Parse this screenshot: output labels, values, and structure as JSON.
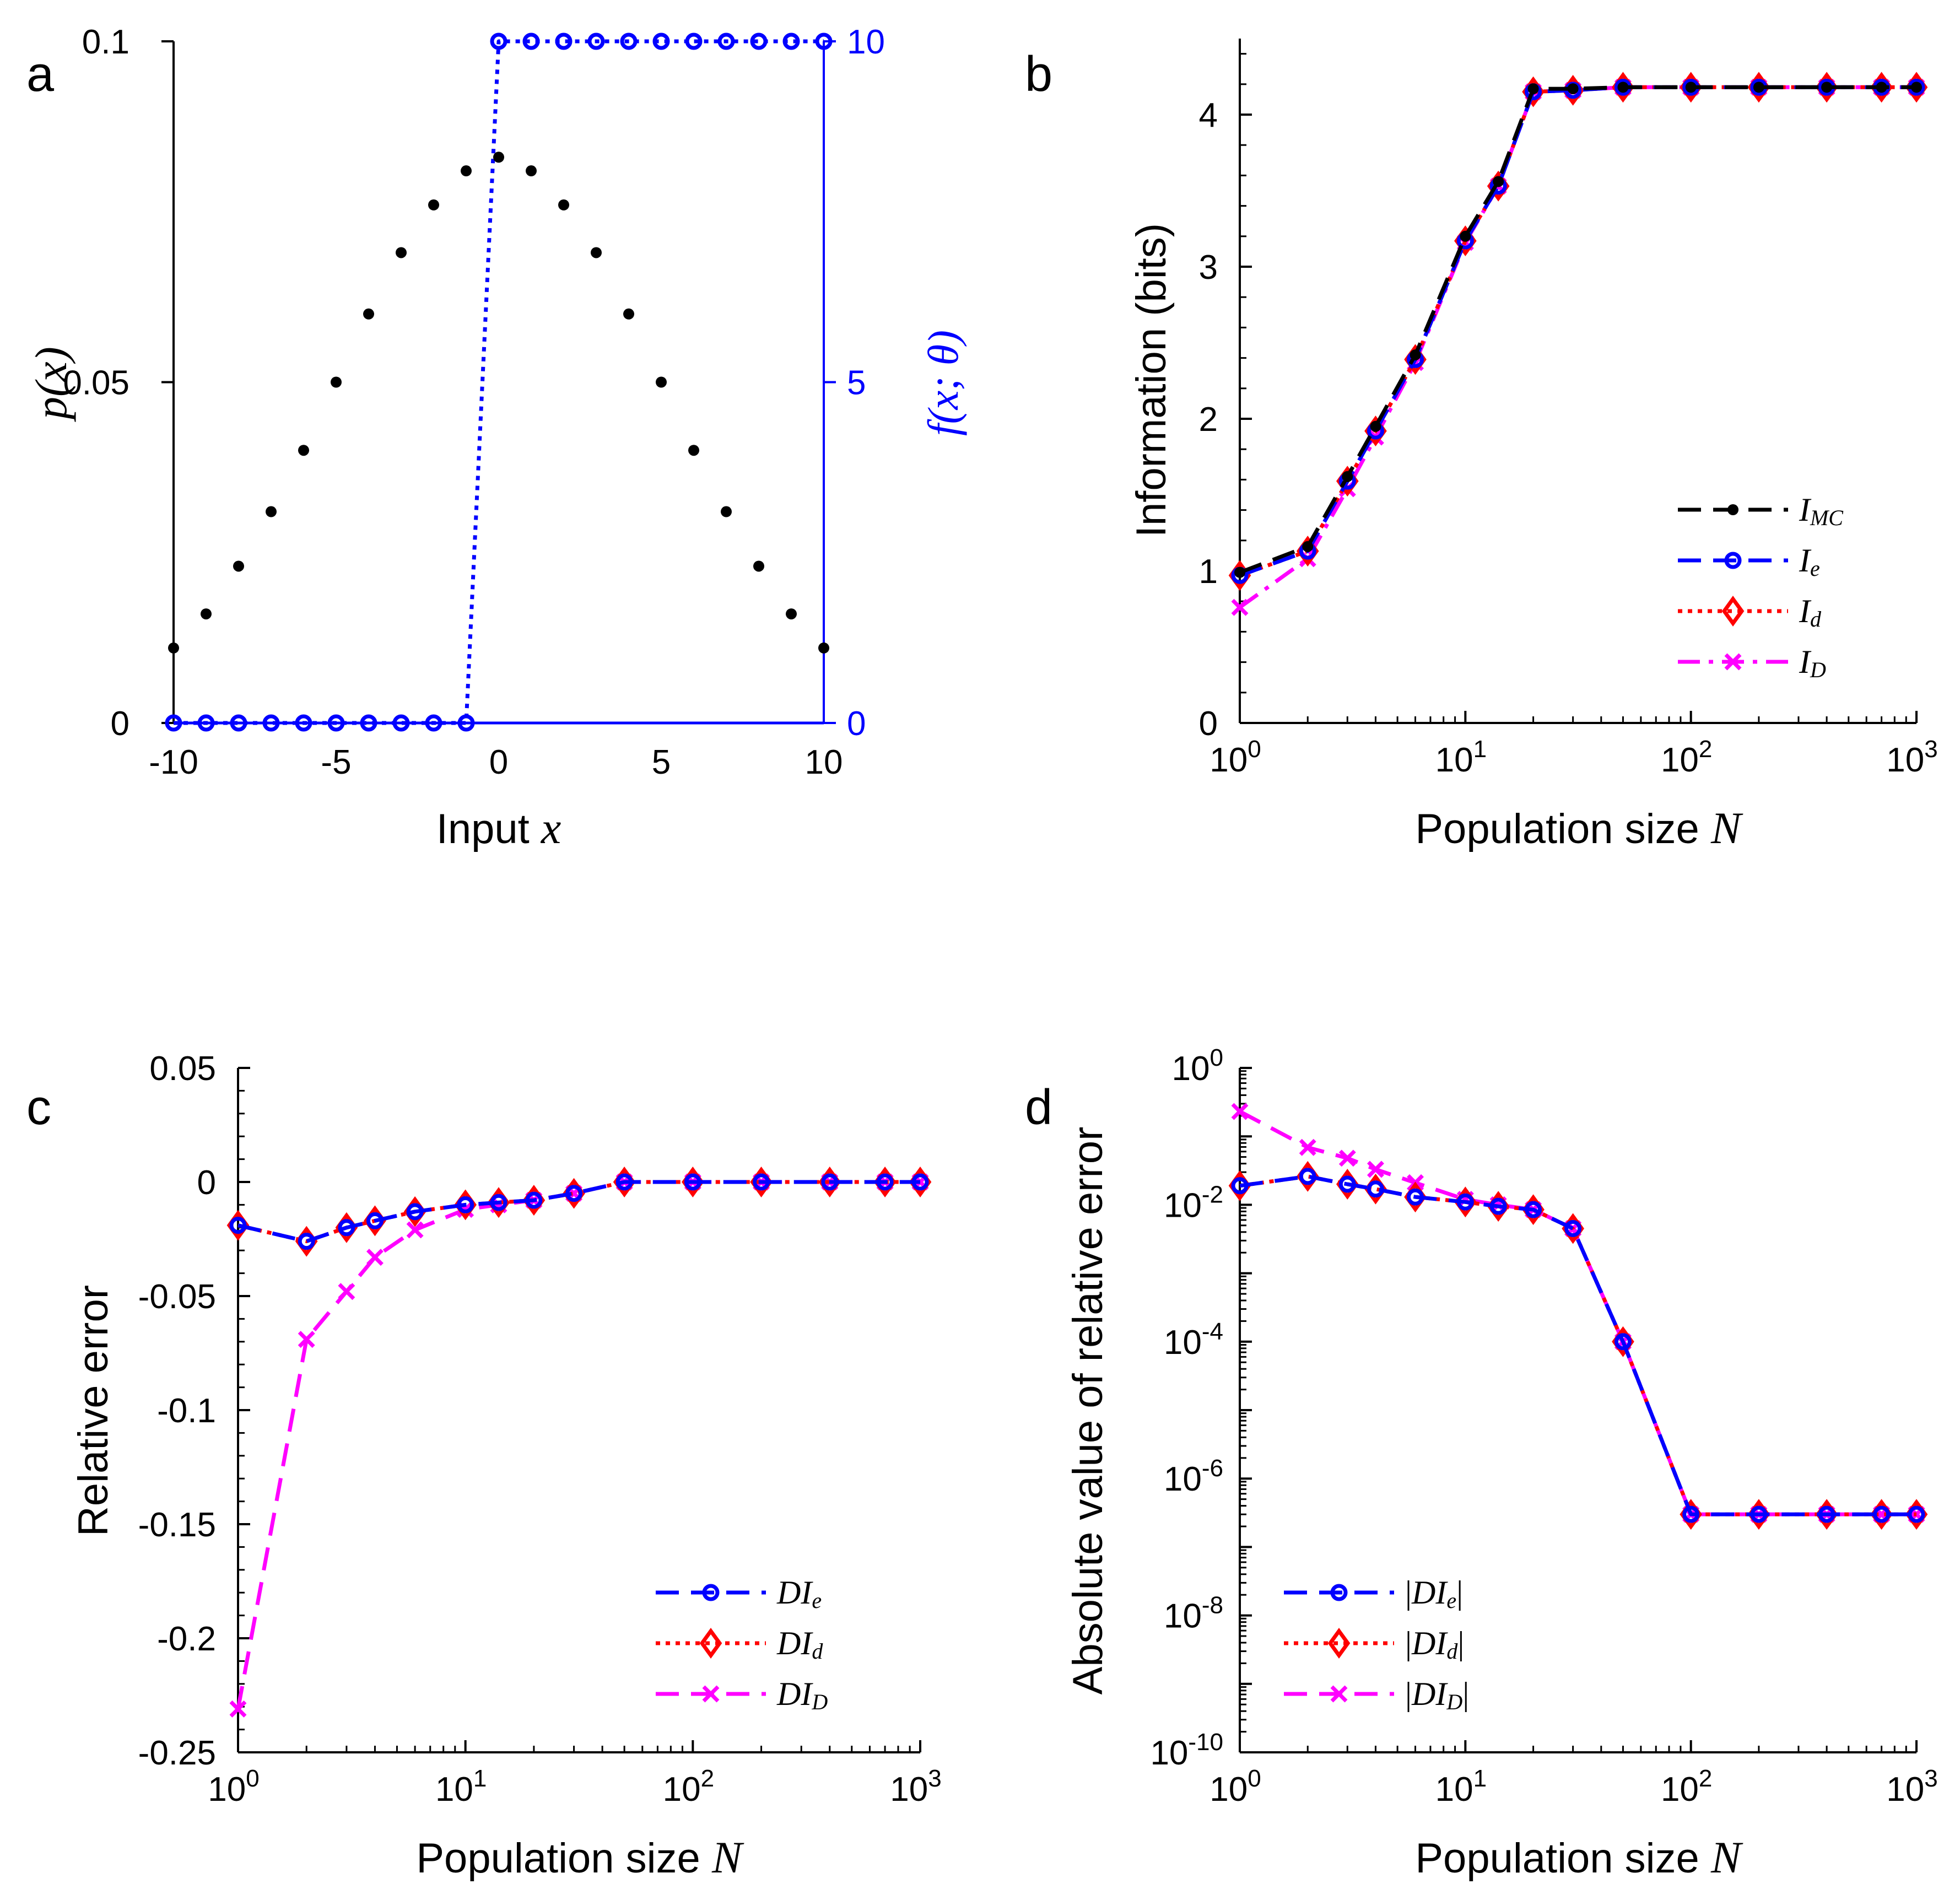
{
  "figure": {
    "panels": [
      "a",
      "b",
      "c",
      "d"
    ]
  },
  "chart_data": [
    {
      "panel": "a",
      "type": "scatter",
      "xlabel": "Input x",
      "xlabel_prefix": "Input",
      "xlabel_var": "x",
      "ylabel_left": "p(x)",
      "ylabel_right": "f(x; θ)",
      "xlim": [
        -10,
        10
      ],
      "ylim_left": [
        0,
        0.1
      ],
      "ylim_right": [
        0,
        10
      ],
      "xticks": [
        -10,
        -5,
        0,
        5,
        10
      ],
      "xtick_labels": [
        "-10",
        "-5",
        "0",
        "5",
        "10"
      ],
      "yticks_left": [
        0,
        0.05,
        0.1
      ],
      "ytick_labels_left": [
        "0",
        "0.05",
        "0.1"
      ],
      "yticks_right": [
        0,
        5,
        10
      ],
      "ytick_labels_right": [
        "0",
        "5",
        "10"
      ],
      "series": [
        {
          "name": "p(x)",
          "axis": "left",
          "color": "#000000",
          "marker": "dot",
          "x": [
            -10,
            -9,
            -8,
            -7,
            -6,
            -5,
            -4,
            -3,
            -2,
            -1,
            0,
            1,
            2,
            3,
            4,
            5,
            6,
            7,
            8,
            9,
            10
          ],
          "y": [
            0.011,
            0.016,
            0.023,
            0.031,
            0.04,
            0.05,
            0.06,
            0.069,
            0.076,
            0.081,
            0.083,
            0.081,
            0.076,
            0.069,
            0.06,
            0.05,
            0.04,
            0.031,
            0.023,
            0.016,
            0.011
          ]
        },
        {
          "name": "f(x; θ)",
          "axis": "right",
          "color": "#0000ff",
          "marker": "circle",
          "line": "dotted",
          "x": [
            -10,
            -9,
            -8,
            -7,
            -6,
            -5,
            -4,
            -3,
            -2,
            -1,
            0,
            1,
            2,
            3,
            4,
            5,
            6,
            7,
            8,
            9,
            10
          ],
          "y": [
            0,
            0,
            0,
            0,
            0,
            0,
            0,
            0,
            0,
            0,
            10,
            10,
            10,
            10,
            10,
            10,
            10,
            10,
            10,
            10,
            10
          ]
        }
      ]
    },
    {
      "panel": "b",
      "type": "line",
      "xscale": "log",
      "xlabel": "Population size N",
      "xlabel_prefix": "Population size",
      "xlabel_var": "N",
      "ylabel": "Information (bits)",
      "xlim": [
        1,
        1000
      ],
      "ylim": [
        0,
        4.5
      ],
      "yticks": [
        0,
        1,
        2,
        3,
        4
      ],
      "ytick_labels": [
        "0",
        "1",
        "2",
        "3",
        "4"
      ],
      "xtick_exponents": [
        "0",
        "1",
        "2",
        "3"
      ],
      "x": [
        1,
        2,
        3,
        4,
        6,
        10,
        14,
        20,
        30,
        50,
        100,
        200,
        400,
        700,
        1000
      ],
      "legend_position": "middle-right",
      "series": [
        {
          "name": "I_MC",
          "label_main": "I",
          "label_sub": "MC",
          "color": "#000000",
          "marker": "dot",
          "dash": "long-dash",
          "values": [
            0.99,
            1.16,
            1.62,
            1.95,
            2.42,
            3.2,
            3.56,
            4.17,
            4.17,
            4.18,
            4.18,
            4.18,
            4.18,
            4.18,
            4.18
          ]
        },
        {
          "name": "I_e",
          "label_main": "I",
          "label_sub": "e",
          "color": "#0000ff",
          "marker": "circle",
          "dash": "long-dash",
          "values": [
            0.97,
            1.13,
            1.59,
            1.92,
            2.39,
            3.17,
            3.53,
            4.15,
            4.16,
            4.18,
            4.18,
            4.18,
            4.18,
            4.18,
            4.18
          ]
        },
        {
          "name": "I_d",
          "label_main": "I",
          "label_sub": "d",
          "color": "#ff0000",
          "marker": "diamond",
          "dash": "dotted",
          "values": [
            0.97,
            1.13,
            1.59,
            1.92,
            2.39,
            3.17,
            3.53,
            4.15,
            4.16,
            4.18,
            4.18,
            4.18,
            4.18,
            4.18,
            4.18
          ]
        },
        {
          "name": "I_D",
          "label_main": "I",
          "label_sub": "D",
          "color": "#ff00ff",
          "marker": "cross",
          "dash": "dash-dot",
          "values": [
            0.76,
            1.08,
            1.54,
            1.88,
            2.37,
            3.16,
            3.53,
            4.15,
            4.16,
            4.18,
            4.18,
            4.18,
            4.18,
            4.18,
            4.18
          ]
        }
      ]
    },
    {
      "panel": "c",
      "type": "line",
      "xscale": "log",
      "xlabel": "Population size N",
      "xlabel_prefix": "Population size",
      "xlabel_var": "N",
      "ylabel": "Relative error",
      "xlim": [
        1,
        1000
      ],
      "ylim": [
        -0.25,
        0.05
      ],
      "yticks": [
        -0.25,
        -0.2,
        -0.15,
        -0.1,
        -0.05,
        0,
        0.05
      ],
      "ytick_labels": [
        "-0.25",
        "-0.2",
        "-0.15",
        "-0.1",
        "-0.05",
        "0",
        "0.05"
      ],
      "xtick_exponents": [
        "0",
        "1",
        "2",
        "3"
      ],
      "x": [
        1,
        2,
        3,
        4,
        6,
        10,
        14,
        20,
        30,
        50,
        100,
        200,
        400,
        700,
        1000
      ],
      "legend_position": "bottom-right",
      "series": [
        {
          "name": "DI_e",
          "label_main": "DI",
          "label_sub": "e",
          "color": "#0000ff",
          "marker": "circle",
          "dash": "long-dash",
          "values": [
            -0.019,
            -0.026,
            -0.02,
            -0.017,
            -0.013,
            -0.01,
            -0.009,
            -0.008,
            -0.005,
            0.0,
            0.0,
            0.0,
            0.0,
            0.0,
            0.0
          ]
        },
        {
          "name": "DI_d",
          "label_main": "DI",
          "label_sub": "d",
          "color": "#ff0000",
          "marker": "diamond",
          "dash": "dotted",
          "values": [
            -0.019,
            -0.026,
            -0.02,
            -0.017,
            -0.013,
            -0.01,
            -0.009,
            -0.008,
            -0.005,
            0.0,
            0.0,
            0.0,
            0.0,
            0.0,
            0.0
          ]
        },
        {
          "name": "DI_D",
          "label_main": "DI",
          "label_sub": "D",
          "color": "#ff00ff",
          "marker": "cross",
          "dash": "long-dash",
          "values": [
            -0.231,
            -0.069,
            -0.048,
            -0.033,
            -0.021,
            -0.012,
            -0.01,
            -0.008,
            -0.005,
            0.0,
            0.0,
            0.0,
            0.0,
            0.0,
            0.0
          ]
        }
      ]
    },
    {
      "panel": "d",
      "type": "line",
      "xscale": "log",
      "yscale": "log",
      "xlabel": "Population size N",
      "xlabel_prefix": "Population size",
      "xlabel_var": "N",
      "ylabel": "Absolute value of relative error",
      "xlim": [
        1,
        1000
      ],
      "ylim": [
        1e-10,
        1
      ],
      "ytick_exponents": [
        "0",
        "-2",
        "-4",
        "-6",
        "-8",
        "-10"
      ],
      "xtick_exponents": [
        "0",
        "1",
        "2",
        "3"
      ],
      "x": [
        1,
        2,
        3,
        4,
        6,
        10,
        14,
        20,
        30,
        50,
        100,
        200,
        400,
        700,
        1000
      ],
      "legend_position": "bottom-left",
      "series": [
        {
          "name": "|DI_e|",
          "label_main": "DI",
          "label_sub": "e",
          "color": "#0000ff",
          "marker": "circle",
          "dash": "long-dash",
          "values": [
            0.019,
            0.026,
            0.02,
            0.017,
            0.013,
            0.011,
            0.0095,
            0.0085,
            0.0045,
            0.0001,
            3e-07,
            3e-07,
            3e-07,
            3e-07,
            3e-07
          ]
        },
        {
          "name": "|DI_d|",
          "label_main": "DI",
          "label_sub": "d",
          "color": "#ff0000",
          "marker": "diamond",
          "dash": "dotted",
          "values": [
            0.019,
            0.026,
            0.02,
            0.017,
            0.013,
            0.011,
            0.0095,
            0.0085,
            0.0045,
            0.0001,
            3e-07,
            3e-07,
            3e-07,
            3e-07,
            3e-07
          ]
        },
        {
          "name": "|DI_D|",
          "label_main": "DI",
          "label_sub": "D",
          "color": "#ff00ff",
          "marker": "cross",
          "dash": "long-dash",
          "values": [
            0.231,
            0.069,
            0.048,
            0.033,
            0.021,
            0.012,
            0.01,
            0.0085,
            0.0045,
            0.0001,
            3e-07,
            3e-07,
            3e-07,
            3e-07,
            3e-07
          ]
        }
      ]
    }
  ]
}
